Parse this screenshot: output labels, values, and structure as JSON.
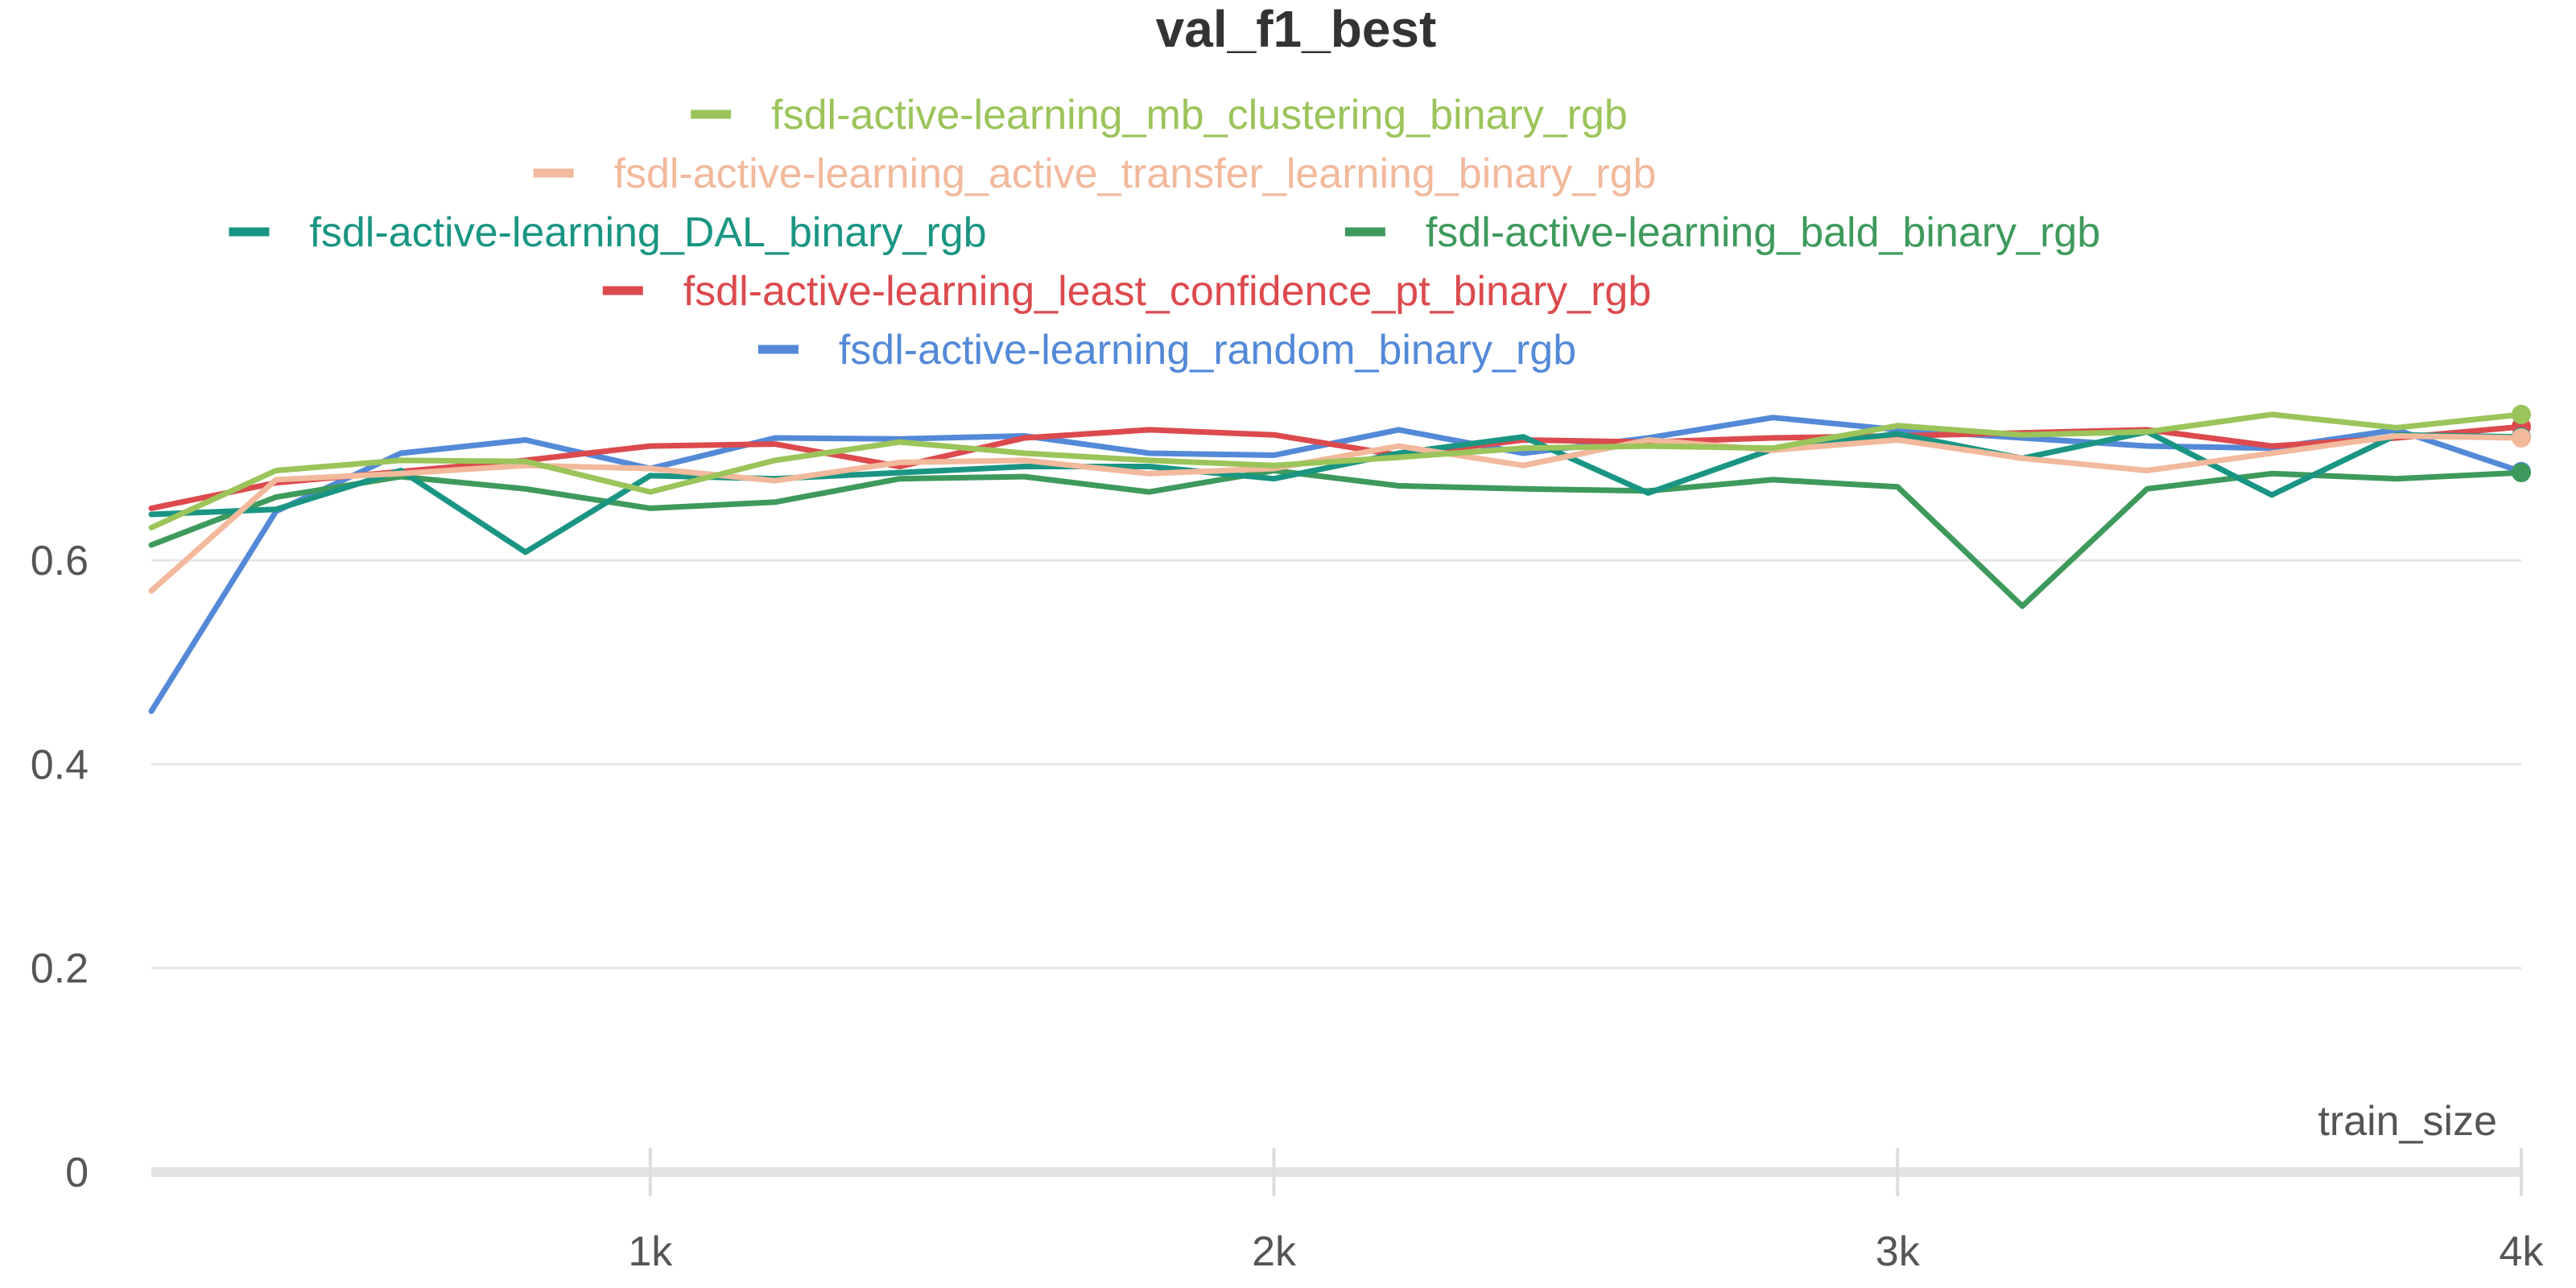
{
  "chart_data": {
    "type": "line",
    "title": "val_f1_best",
    "xlabel": "train_size",
    "ylabel": "",
    "xlim": [
      200,
      4000
    ],
    "ylim": [
      0,
      0.8
    ],
    "x_ticks": [
      1000,
      2000,
      3000,
      4000
    ],
    "x_tick_labels": [
      "1k",
      "2k",
      "3k",
      "4k"
    ],
    "y_ticks": [
      0,
      0.2,
      0.4,
      0.6
    ],
    "y_tick_labels": [
      "0",
      "0.2",
      "0.4",
      "0.6"
    ],
    "grid": true,
    "legend_position": "top-center",
    "x": [
      200,
      400,
      600,
      800,
      1000,
      1200,
      1400,
      1600,
      1800,
      2000,
      2200,
      2400,
      2600,
      2800,
      3000,
      3200,
      3400,
      3600,
      3800,
      4000
    ],
    "series": [
      {
        "name": "fsdl-active-learning_mb_clustering_binary_rgb",
        "color": "#9bc45a",
        "values": [
          0.632,
          0.688,
          0.698,
          0.697,
          0.667,
          0.698,
          0.716,
          0.705,
          0.698,
          0.693,
          0.701,
          0.71,
          0.712,
          0.71,
          0.732,
          0.723,
          0.726,
          0.743,
          0.73,
          0.743
        ]
      },
      {
        "name": "fsdl-active-learning_active_transfer_learning_binary_rgb",
        "color": "#f2b99c",
        "values": [
          0.57,
          0.679,
          0.685,
          0.693,
          0.69,
          0.678,
          0.696,
          0.698,
          0.685,
          0.69,
          0.712,
          0.693,
          0.718,
          0.708,
          0.718,
          0.7,
          0.688,
          0.705,
          0.722,
          0.72
        ]
      },
      {
        "name": "fsdl-active-learning_DAL_binary_rgb",
        "color": "#1a9583",
        "values": [
          0.645,
          0.65,
          0.688,
          0.608,
          0.683,
          0.68,
          0.686,
          0.692,
          0.692,
          0.68,
          0.705,
          0.721,
          0.666,
          0.709,
          0.724,
          0.7,
          0.726,
          0.664,
          0.723,
          0.721
        ]
      },
      {
        "name": "fsdl-active-learning_bald_binary_rgb",
        "color": "#3e9a5c",
        "values": [
          0.615,
          0.662,
          0.682,
          0.67,
          0.651,
          0.657,
          0.68,
          0.682,
          0.667,
          0.688,
          0.673,
          0.67,
          0.668,
          0.679,
          0.672,
          0.555,
          0.67,
          0.685,
          0.68,
          0.686
        ]
      },
      {
        "name": "fsdl-active-learning_least_confidence_pt_binary_rgb",
        "color": "#dc4a4e",
        "values": [
          0.651,
          0.676,
          0.687,
          0.698,
          0.712,
          0.714,
          0.692,
          0.72,
          0.728,
          0.723,
          0.703,
          0.718,
          0.716,
          0.72,
          0.722,
          0.725,
          0.728,
          0.712,
          0.72,
          0.731
        ]
      },
      {
        "name": "fsdl-active-learning_random_binary_rgb",
        "color": "#5489d8",
        "values": [
          0.452,
          0.648,
          0.705,
          0.718,
          0.69,
          0.72,
          0.719,
          0.722,
          0.705,
          0.703,
          0.728,
          0.705,
          0.72,
          0.74,
          0.728,
          0.72,
          0.712,
          0.71,
          0.728,
          0.687
        ]
      }
    ]
  }
}
